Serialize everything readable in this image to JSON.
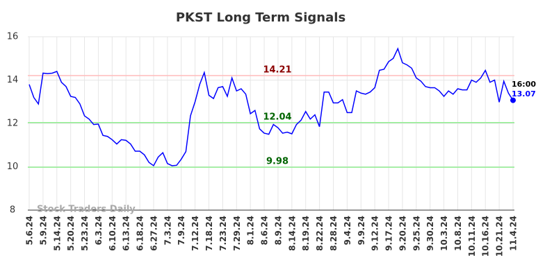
{
  "chart_data": {
    "type": "line",
    "title": "PKST Long Term Signals",
    "categories": [
      "5.6.24",
      null,
      null,
      "5.9.24",
      null,
      null,
      "5.14.24",
      null,
      null,
      "5.20.24",
      null,
      null,
      "5.23.24",
      null,
      null,
      "6.3.24",
      null,
      null,
      "6.10.24",
      null,
      null,
      "6.13.24",
      null,
      null,
      "6.18.24",
      null,
      null,
      "6.27.24",
      null,
      null,
      "7.3.24",
      null,
      null,
      "7.9.24",
      null,
      null,
      "7.12.24",
      null,
      null,
      "7.18.24",
      null,
      null,
      "7.23.24",
      null,
      null,
      "7.29.24",
      null,
      null,
      "8.1.24",
      null,
      null,
      "8.6.24",
      null,
      null,
      "8.9.24",
      null,
      null,
      "8.14.24",
      null,
      null,
      "8.19.24",
      null,
      null,
      "8.22.24",
      null,
      null,
      "8.28.24",
      null,
      null,
      "9.4.24",
      null,
      null,
      "9.9.24",
      null,
      null,
      "9.12.24",
      null,
      null,
      "9.17.24",
      null,
      null,
      "9.20.24",
      null,
      null,
      "9.25.24",
      null,
      null,
      "9.30.24",
      null,
      null,
      "10.3.24",
      null,
      null,
      "10.8.24",
      null,
      null,
      "10.11.24",
      null,
      null,
      "10.16.24",
      null,
      null,
      "10.21.24",
      null,
      null,
      "11.4.24"
    ],
    "values": [
      13.8,
      13.2,
      12.9,
      14.32,
      14.3,
      14.32,
      14.4,
      13.9,
      13.7,
      13.25,
      13.2,
      12.9,
      12.35,
      12.2,
      11.95,
      11.97,
      11.45,
      11.4,
      11.25,
      11.05,
      11.25,
      11.22,
      11.05,
      10.72,
      10.72,
      10.55,
      10.2,
      10.05,
      10.45,
      10.65,
      10.15,
      10.05,
      10.07,
      10.35,
      10.7,
      12.35,
      13.0,
      13.8,
      14.35,
      13.3,
      13.15,
      13.65,
      13.7,
      13.25,
      14.1,
      13.5,
      13.6,
      13.35,
      12.45,
      12.6,
      11.75,
      11.55,
      11.5,
      11.95,
      11.8,
      11.55,
      11.6,
      11.52,
      11.95,
      12.15,
      12.55,
      12.2,
      12.4,
      11.85,
      13.45,
      13.45,
      12.95,
      12.95,
      13.1,
      12.5,
      12.5,
      13.5,
      13.4,
      13.35,
      13.45,
      13.65,
      14.45,
      14.5,
      14.85,
      15.0,
      15.45,
      14.8,
      14.7,
      14.55,
      14.1,
      13.95,
      13.7,
      13.65,
      13.65,
      13.5,
      13.25,
      13.5,
      13.35,
      13.6,
      13.55,
      13.55,
      14.0,
      13.9,
      14.1,
      14.45,
      13.9,
      14.0,
      12.98,
      13.95,
      13.4,
      13.07
    ],
    "color": "#0000ff",
    "ylim": [
      8,
      16
    ],
    "yticks": [
      8,
      10,
      12,
      14,
      16
    ],
    "grid": true,
    "reference_lines": [
      {
        "value": 14.21,
        "color": "#ffbbbb",
        "label_color": "#8b0000"
      },
      {
        "value": 12.04,
        "color": "#90ee90",
        "label_color": "#006400"
      },
      {
        "value": 9.98,
        "color": "#90ee90",
        "label_color": "#006400"
      }
    ],
    "end_annotation": "16:00",
    "watermark": "Stock Traders Daily"
  }
}
